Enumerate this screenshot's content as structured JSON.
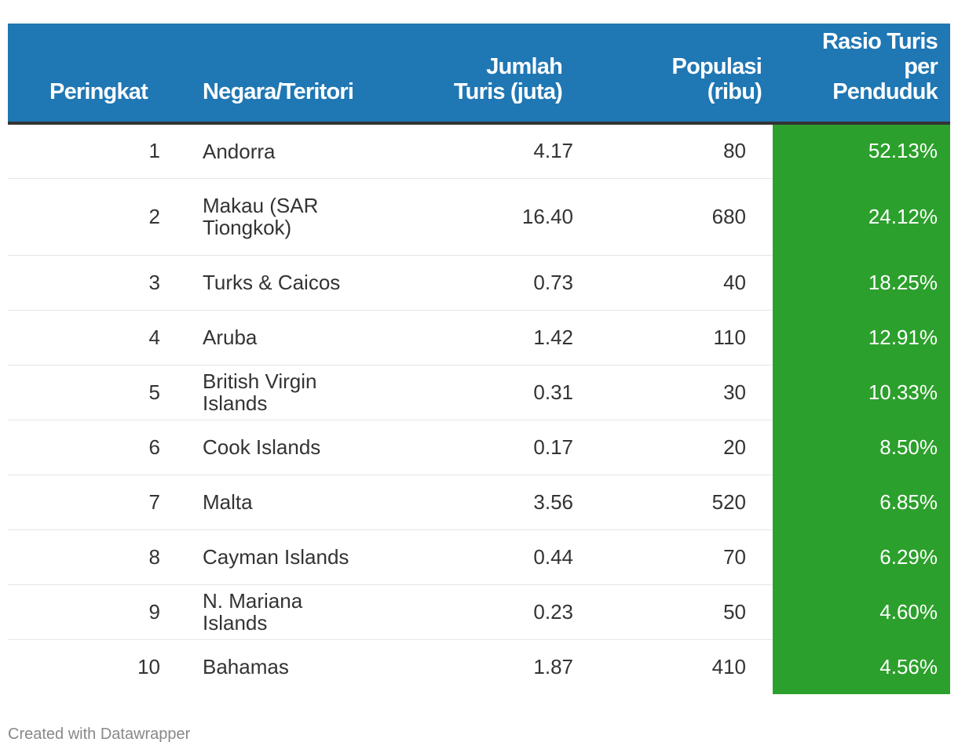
{
  "chart_data": {
    "type": "table",
    "columns": [
      "Peringkat",
      "Negara/Teritori",
      "Jumlah Turis (juta)",
      "Populasi (ribu)",
      "Rasio Turis per Penduduk"
    ],
    "rows": [
      {
        "rank": "1",
        "country": "Andorra",
        "tourists": "4.17",
        "population": "80",
        "ratio": "52.13%"
      },
      {
        "rank": "2",
        "country": "Makau (SAR Tiongkok)",
        "tourists": "16.40",
        "population": "680",
        "ratio": "24.12%"
      },
      {
        "rank": "3",
        "country": "Turks & Caicos",
        "tourists": "0.73",
        "population": "40",
        "ratio": "18.25%"
      },
      {
        "rank": "4",
        "country": "Aruba",
        "tourists": "1.42",
        "population": "110",
        "ratio": "12.91%"
      },
      {
        "rank": "5",
        "country": "British Virgin Islands",
        "tourists": "0.31",
        "population": "30",
        "ratio": "10.33%"
      },
      {
        "rank": "6",
        "country": "Cook Islands",
        "tourists": "0.17",
        "population": "20",
        "ratio": "8.50%"
      },
      {
        "rank": "7",
        "country": "Malta",
        "tourists": "3.56",
        "population": "520",
        "ratio": "6.85%"
      },
      {
        "rank": "8",
        "country": "Cayman Islands",
        "tourists": "0.44",
        "population": "70",
        "ratio": "6.29%"
      },
      {
        "rank": "9",
        "country": "N. Mariana Islands",
        "tourists": "0.23",
        "population": "50",
        "ratio": "4.60%"
      },
      {
        "rank": "10",
        "country": "Bahamas",
        "tourists": "1.87",
        "population": "410",
        "ratio": "4.56%"
      }
    ]
  },
  "colors": {
    "header_bg": "#1f77b4",
    "highlight_column": "#2ca02c"
  },
  "footer": "Created with Datawrapper"
}
